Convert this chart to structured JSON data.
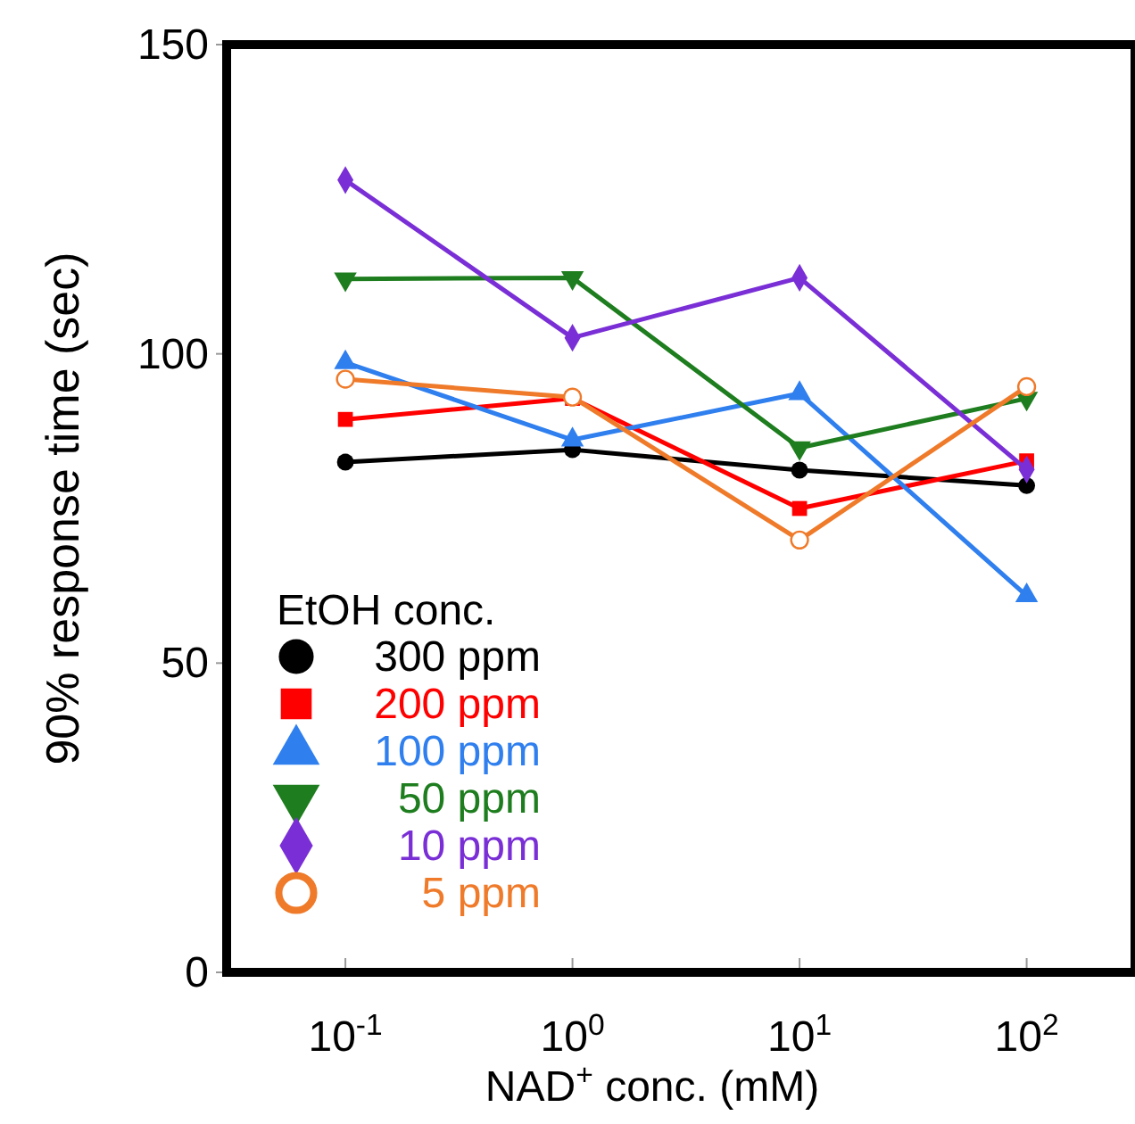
{
  "chart_data": {
    "type": "line",
    "xlabel": "NAD$^{+}$ conc. (mM)",
    "ylabel": "90% response time (sec)",
    "legend_title": "EtOH conc.",
    "legend": "bottom left",
    "log": "x",
    "grid": false,
    "x": [
      0.1,
      1,
      10,
      100
    ],
    "xlim": [
      0.03,
      300
    ],
    "xticks": [
      {
        "value": 0.1,
        "label": "10$^{-1}$"
      },
      {
        "value": 1,
        "label": "10$^{0}$"
      },
      {
        "value": 10,
        "label": "10$^{1}$"
      },
      {
        "value": 100,
        "label": "10$^{2}$"
      }
    ],
    "ylim": [
      0,
      150
    ],
    "yticks": [
      0,
      50,
      100,
      150
    ],
    "series": [
      {
        "name": "300 ppm",
        "color": "#000000",
        "marker": "circle",
        "values": [
          82.5,
          84.5,
          81.2,
          78.7
        ]
      },
      {
        "name": "200 ppm",
        "color": "#ff0000",
        "marker": "square",
        "values": [
          89.4,
          92.8,
          75.0,
          82.7
        ]
      },
      {
        "name": "100 ppm",
        "color": "#2f7fef",
        "marker": "triangle",
        "values": [
          98.6,
          86.1,
          93.6,
          60.9
        ]
      },
      {
        "name": "50 ppm",
        "color": "#1e7d1e",
        "marker": "triangle-down",
        "values": [
          112.1,
          112.3,
          84.8,
          92.8
        ]
      },
      {
        "name": "10 ppm",
        "color": "#7a2fd6",
        "marker": "diamond",
        "values": [
          128.1,
          102.6,
          112.3,
          81.3
        ]
      },
      {
        "name": "5 ppm",
        "color": "#ef7a2a",
        "marker": "open-circle",
        "values": [
          95.9,
          93.0,
          69.9,
          94.7
        ]
      }
    ]
  }
}
